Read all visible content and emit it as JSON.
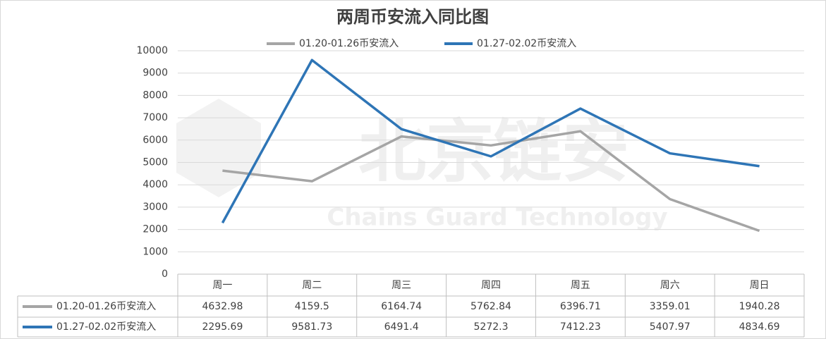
{
  "chart_data": {
    "type": "line",
    "title": "两周币安流入同比图",
    "categories": [
      "周一",
      "周二",
      "周三",
      "周四",
      "周五",
      "周六",
      "周日"
    ],
    "series": [
      {
        "name": "01.20-01.26币安流入",
        "color": "#a5a5a5",
        "values": [
          4632.98,
          4159.5,
          6164.74,
          5762.84,
          6396.71,
          3359.01,
          1940.28
        ]
      },
      {
        "name": "01.27-02.02币安流入",
        "color": "#2e75b6",
        "values": [
          2295.69,
          9581.73,
          6491.4,
          5272.3,
          7412.23,
          5407.97,
          4834.69
        ]
      }
    ],
    "ylim": [
      0,
      10000
    ],
    "yticks": [
      0,
      1000,
      2000,
      3000,
      4000,
      5000,
      6000,
      7000,
      8000,
      9000,
      10000
    ],
    "grid": true,
    "legend": "top",
    "data_table": true,
    "watermark": {
      "title": "北京链安",
      "subtitle": "Chains Guard Technology"
    }
  }
}
